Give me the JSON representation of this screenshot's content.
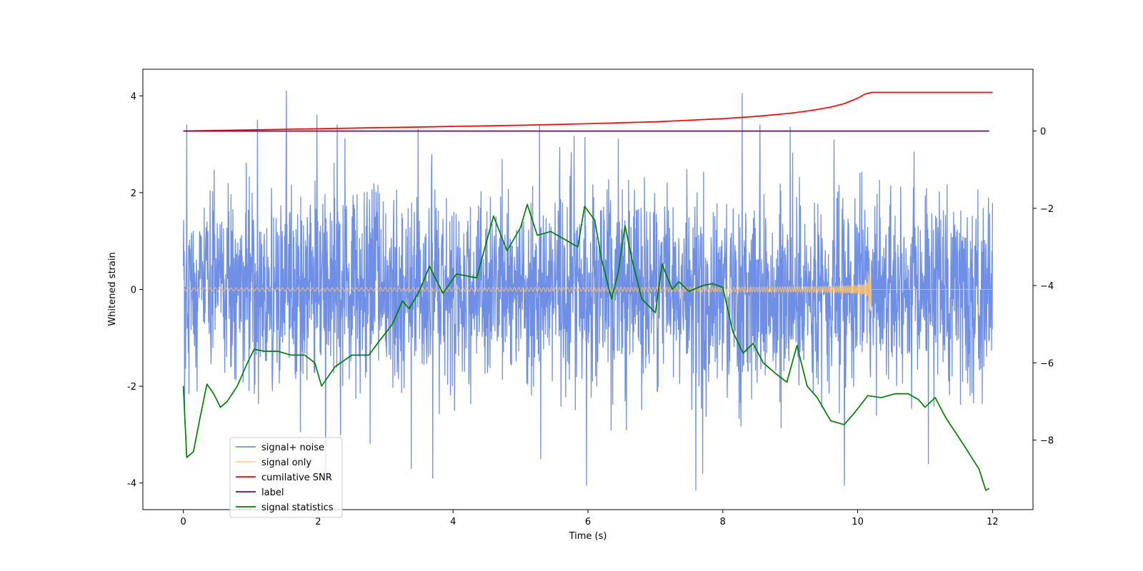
{
  "chart_data": {
    "type": "line",
    "title": "",
    "xlabel": "Time (s)",
    "ylabel": "Whitened strain",
    "y2label": "",
    "xlim": [
      -0.6,
      12.6
    ],
    "ylim": [
      -4.55,
      4.55
    ],
    "y2lim": [
      -9.8,
      1.6
    ],
    "x_ticks": [
      0,
      2,
      4,
      6,
      8,
      10,
      12
    ],
    "y_ticks": [
      -4,
      -2,
      0,
      2,
      4
    ],
    "y2_ticks": [
      -8,
      -6,
      -4,
      -2,
      0
    ],
    "grid": false,
    "legend_position": "lower-left",
    "series": [
      {
        "name": "signal+ noise",
        "color": "#6f8fe6",
        "axis": "left",
        "style": "gaussian-noise",
        "x_range": [
          0,
          12
        ],
        "std": 1.0,
        "notable_peaks": [
          {
            "x": 0.05,
            "y": 3.4
          },
          {
            "x": 1.1,
            "y": 3.5
          },
          {
            "x": 1.53,
            "y": 4.1
          },
          {
            "x": 1.98,
            "y": 3.6
          },
          {
            "x": 2.28,
            "y": 3.4
          },
          {
            "x": 5.28,
            "y": 3.4
          },
          {
            "x": 8.29,
            "y": 4.05
          },
          {
            "x": 8.55,
            "y": 3.4
          },
          {
            "x": 9.0,
            "y": 3.35
          },
          {
            "x": 0.02,
            "y": -2.6
          },
          {
            "x": 3.38,
            "y": -3.7
          },
          {
            "x": 3.7,
            "y": -3.9
          },
          {
            "x": 5.3,
            "y": -3.5
          },
          {
            "x": 5.98,
            "y": -4.05
          },
          {
            "x": 7.6,
            "y": -4.15
          },
          {
            "x": 7.7,
            "y": -3.8
          },
          {
            "x": 9.8,
            "y": -4.05
          },
          {
            "x": 11.05,
            "y": -3.6
          }
        ]
      },
      {
        "name": "signal only",
        "color": "#ffc266",
        "axis": "left",
        "style": "chirp",
        "x_range": [
          0,
          12
        ],
        "merger_time": 10.2,
        "peak_amplitude": 0.55
      },
      {
        "name": "cumilative SNR",
        "color": "#ff0000",
        "axis": "right",
        "x": [
          0,
          1,
          2,
          3,
          4,
          5,
          6,
          7,
          7.5,
          8,
          8.5,
          9,
          9.3,
          9.6,
          9.8,
          10.0,
          10.1,
          10.2,
          10.3,
          12
        ],
        "y": [
          0.0,
          0.03,
          0.06,
          0.09,
          0.12,
          0.15,
          0.19,
          0.24,
          0.28,
          0.32,
          0.38,
          0.46,
          0.53,
          0.62,
          0.71,
          0.85,
          0.95,
          1.0,
          1.0,
          1.0
        ]
      },
      {
        "name": "label",
        "color": "#6a0d6a",
        "axis": "right",
        "x": [
          0,
          11.95
        ],
        "y": [
          0,
          0
        ]
      },
      {
        "name": "signal statistics",
        "color": "#008000",
        "axis": "right",
        "x": [
          0,
          0.05,
          0.15,
          0.25,
          0.35,
          0.45,
          0.55,
          0.65,
          0.8,
          0.95,
          1.05,
          1.2,
          1.4,
          1.6,
          1.8,
          1.95,
          2.05,
          2.25,
          2.5,
          2.75,
          2.9,
          3.1,
          3.25,
          3.35,
          3.5,
          3.65,
          3.85,
          4.05,
          4.35,
          4.6,
          4.8,
          5.0,
          5.1,
          5.25,
          5.45,
          5.65,
          5.85,
          5.95,
          6.1,
          6.2,
          6.35,
          6.45,
          6.55,
          6.65,
          6.8,
          7.0,
          7.1,
          7.25,
          7.35,
          7.5,
          7.7,
          7.85,
          8.0,
          8.15,
          8.3,
          8.45,
          8.6,
          8.8,
          8.95,
          9.1,
          9.25,
          9.4,
          9.6,
          9.8,
          9.95,
          10.15,
          10.35,
          10.55,
          10.75,
          10.9,
          11.0,
          11.15,
          11.3,
          11.45,
          11.6,
          11.8,
          11.9,
          11.95
        ],
        "y": [
          -6.6,
          -8.45,
          -8.3,
          -7.4,
          -6.55,
          -6.8,
          -7.15,
          -7.0,
          -6.6,
          -6.0,
          -5.65,
          -5.7,
          -5.7,
          -5.8,
          -5.8,
          -6.0,
          -6.6,
          -6.1,
          -5.8,
          -5.8,
          -5.45,
          -5.0,
          -4.4,
          -4.6,
          -4.15,
          -3.5,
          -4.2,
          -3.7,
          -3.8,
          -2.2,
          -3.1,
          -2.5,
          -1.9,
          -2.7,
          -2.6,
          -2.8,
          -3.0,
          -1.95,
          -2.3,
          -3.3,
          -4.35,
          -3.65,
          -2.45,
          -3.3,
          -4.35,
          -4.7,
          -3.45,
          -4.1,
          -3.9,
          -4.15,
          -4.0,
          -3.95,
          -4.05,
          -5.2,
          -5.75,
          -5.5,
          -6.0,
          -6.3,
          -6.5,
          -5.55,
          -6.6,
          -6.9,
          -7.5,
          -7.6,
          -7.3,
          -6.85,
          -6.9,
          -6.8,
          -6.8,
          -6.95,
          -7.15,
          -6.9,
          -7.4,
          -7.8,
          -8.2,
          -8.75,
          -9.3,
          -9.25
        ]
      }
    ]
  }
}
